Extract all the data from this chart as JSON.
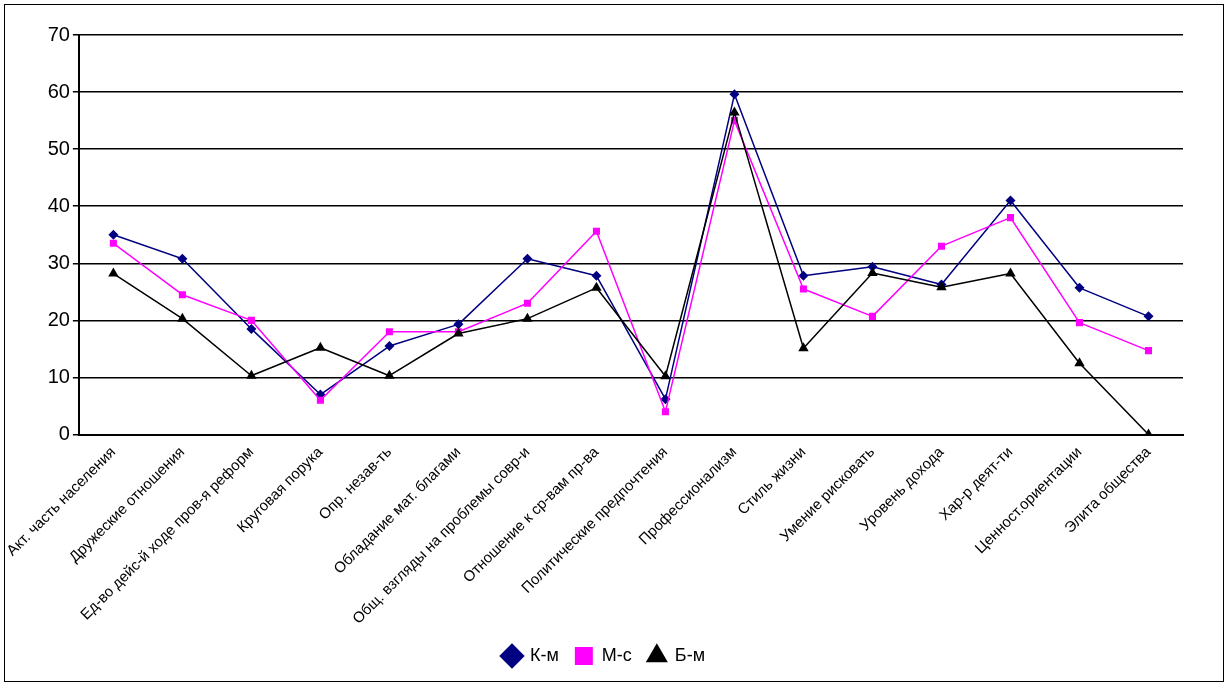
{
  "chart_data": {
    "type": "line",
    "categories": [
      "Акт. часть населения",
      "Дружеские отношения",
      "Ед-во дейс-й ходе пров-я реформ",
      "Круговая порука",
      "Опр. незав-ть",
      "Обладание мат. благами",
      "Общ. взгляды на проблемы совр-и",
      "Отношение к ср-вам пр-ва",
      "Политические предпочтения",
      "Профессионализм",
      "Стиль жизни",
      "Умение рисковать",
      "Уровень дохода",
      "Хар-р деят-ти",
      "Ценност.ориентации",
      "Элита общества"
    ],
    "series": [
      {
        "name": "К-м",
        "color": "#000080",
        "marker": "diamond",
        "values": [
          35,
          30.8,
          18.5,
          7,
          15.5,
          19.3,
          30.8,
          27.8,
          6.2,
          59.6,
          27.8,
          29.4,
          26.3,
          41,
          25.7,
          20.7
        ]
      },
      {
        "name": "М-с",
        "color": "#ff00ff",
        "marker": "square",
        "values": [
          33.5,
          24.5,
          20,
          6,
          18,
          18,
          23,
          35.6,
          4,
          55,
          25.5,
          20.7,
          33,
          38,
          19.6,
          14.7
        ]
      },
      {
        "name": "Б-м",
        "color": "#000000",
        "marker": "triangle",
        "values": [
          28.2,
          20.3,
          10.3,
          15.2,
          10.3,
          17.7,
          20.3,
          25.7,
          10.2,
          56.4,
          15.1,
          28.3,
          25.8,
          28.2,
          12.5,
          0
        ]
      }
    ],
    "ylim": [
      0,
      70
    ],
    "yticks": [
      0,
      10,
      20,
      30,
      40,
      50,
      60,
      70
    ],
    "grid": "y",
    "legend": "bottom"
  }
}
